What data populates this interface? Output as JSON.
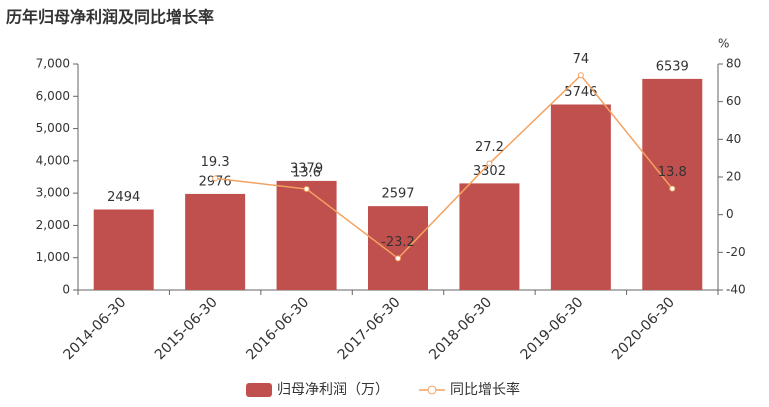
{
  "chart_data": {
    "type": "bar-line",
    "title": "历年归母净利润及同比增长率",
    "categories": [
      "2014-06-30",
      "2015-06-30",
      "2016-06-30",
      "2017-06-30",
      "2018-06-30",
      "2019-06-30",
      "2020-06-30"
    ],
    "series": [
      {
        "name": "归母净利润（万）",
        "type": "bar",
        "color": "#c0504d",
        "values": [
          2494,
          2976,
          3379,
          2597,
          3302,
          5746,
          6539
        ]
      },
      {
        "name": "同比增长率",
        "type": "line",
        "axis": "y2",
        "color": "#f4a261",
        "values": [
          null,
          19.3,
          13.6,
          -23.2,
          27.2,
          74,
          13.8
        ]
      }
    ],
    "ylim": [
      0,
      7000
    ],
    "yticks": [
      0,
      {
        "value": 1000,
        "label": "1,000"
      },
      {
        "value": 2000,
        "label": "2,000"
      },
      {
        "value": 3000,
        "label": "3,000"
      },
      {
        "value": 4000,
        "label": "4,000"
      },
      {
        "value": 5000,
        "label": "5,000"
      },
      {
        "value": 6000,
        "label": "6,000"
      },
      {
        "value": 7000,
        "label": "7,000"
      }
    ],
    "y2lim": [
      -40,
      80
    ],
    "y2ticks": [
      -40,
      -20,
      0,
      20,
      40,
      60,
      80
    ],
    "y2_label": "%",
    "grid": false,
    "legend": "bottom"
  }
}
